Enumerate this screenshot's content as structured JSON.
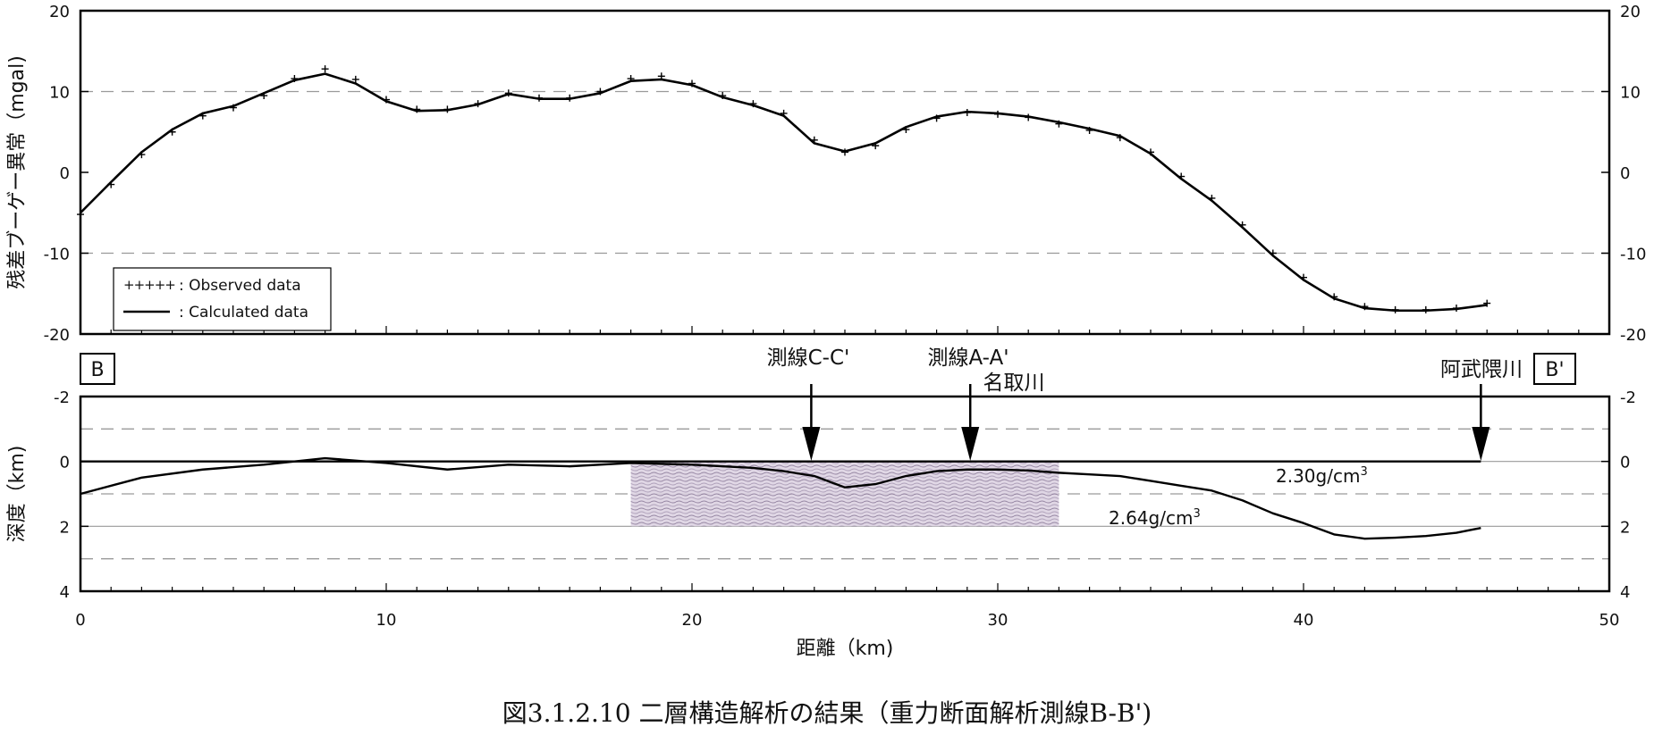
{
  "caption": "図3.1.2.10  二層構造解析の結果（重力断面解析測線B-B')",
  "labels": {
    "section_start": "B",
    "section_end": "B'",
    "arrows": [
      "測線C-C'",
      "測線A-A'",
      "名取川",
      "阿武隈川"
    ]
  },
  "colors": {
    "line": "#000000",
    "grid": "#9a9a9a",
    "seismic": "#b8a6c4"
  },
  "chart_data": [
    {
      "type": "line",
      "ylabel": "残差ブーゲー異常（mgal)",
      "xlim": [
        0,
        50
      ],
      "ylim": [
        -20,
        20
      ],
      "yticks": [
        20,
        10,
        0,
        -10,
        -20
      ],
      "grid": "dashed horizontal at ±10",
      "legend_position": "bottom-left",
      "series": [
        {
          "name": ": Observed data",
          "marker": "+",
          "x": [
            0,
            1,
            2,
            3,
            4,
            5,
            6,
            7,
            8,
            9,
            10,
            11,
            12,
            13,
            14,
            15,
            16,
            17,
            18,
            19,
            20,
            21,
            22,
            23,
            24,
            25,
            26,
            27,
            28,
            29,
            30,
            31,
            32,
            33,
            34,
            35,
            36,
            37,
            38,
            39,
            40,
            41,
            42,
            43,
            44,
            45,
            46
          ],
          "values": [
            -5.2,
            -1.5,
            2.2,
            5,
            7,
            8,
            9.5,
            11.6,
            12.8,
            11.5,
            9,
            7.8,
            7.8,
            8.5,
            9.8,
            9.2,
            9.2,
            10,
            11.6,
            11.9,
            11,
            9.5,
            8.5,
            7.3,
            4,
            2.5,
            3.3,
            5.3,
            6.7,
            7.4,
            7.2,
            6.8,
            6,
            5.2,
            4.3,
            2.5,
            -0.5,
            -3.2,
            -6.5,
            -10,
            -13,
            -15.4,
            -16.6,
            -17,
            -17,
            -16.8,
            -16.2
          ]
        },
        {
          "name": ": Calculated data",
          "x": [
            0,
            1,
            2,
            3,
            4,
            5,
            6,
            7,
            8,
            9,
            10,
            11,
            12,
            13,
            14,
            15,
            16,
            17,
            18,
            19,
            20,
            21,
            22,
            23,
            24,
            25,
            26,
            27,
            28,
            29,
            30,
            31,
            32,
            33,
            34,
            35,
            36,
            37,
            38,
            39,
            40,
            41,
            42,
            43,
            44,
            45,
            46
          ],
          "values": [
            -5,
            -1.2,
            2.5,
            5.3,
            7.3,
            8.2,
            9.8,
            11.4,
            12.2,
            11,
            8.8,
            7.6,
            7.7,
            8.4,
            9.7,
            9.1,
            9.1,
            9.8,
            11.3,
            11.5,
            10.8,
            9.3,
            8.3,
            7,
            3.6,
            2.6,
            3.6,
            5.6,
            6.9,
            7.5,
            7.3,
            6.9,
            6.2,
            5.4,
            4.5,
            2.3,
            -0.8,
            -3.5,
            -6.8,
            -10.3,
            -13.3,
            -15.6,
            -16.8,
            -17.1,
            -17.1,
            -16.9,
            -16.4
          ]
        }
      ]
    },
    {
      "type": "line",
      "xlabel": "距離（km)",
      "ylabel": "深度（km)",
      "xlim": [
        0,
        50
      ],
      "ylim": [
        -2,
        4
      ],
      "xticks": [
        0,
        10,
        20,
        30,
        40,
        50
      ],
      "yticks": [
        -2,
        0,
        2,
        4
      ],
      "grid": "dashed at -1, 1, 3; solid at 0, 2",
      "series": [
        {
          "name": "2.30g/cm3",
          "x": [
            0,
            2,
            4,
            6,
            8,
            10,
            12,
            14,
            16,
            18,
            20,
            22,
            23,
            24,
            25,
            26,
            27,
            28,
            29,
            30,
            31,
            32,
            33,
            34,
            35,
            36,
            37,
            38,
            39,
            40,
            41,
            42,
            43,
            44,
            45,
            45.8
          ],
          "values": [
            1,
            0.5,
            0.25,
            0.1,
            -0.1,
            0.05,
            0.25,
            0.1,
            0.15,
            0.05,
            0.1,
            0.2,
            0.3,
            0.45,
            0.8,
            0.7,
            0.45,
            0.3,
            0.25,
            0.25,
            0.28,
            0.35,
            0.4,
            0.45,
            0.6,
            0.75,
            0.9,
            1.2,
            1.6,
            1.9,
            2.25,
            2.38,
            2.35,
            2.3,
            2.2,
            2.05
          ]
        },
        {
          "name": "2.64g/cm3",
          "x": [
            0,
            5,
            10,
            15,
            20,
            25,
            30,
            35,
            40,
            45.8
          ],
          "values": [
            0,
            0,
            0,
            0,
            0,
            0,
            0,
            0,
            0,
            0
          ]
        }
      ],
      "annotations": [
        {
          "text": "2.30g/cm",
          "sup": "3",
          "x": 39.5,
          "y": 0.4
        },
        {
          "text": "2.64g/cm",
          "sup": "3",
          "x": 35,
          "y": 1.7
        }
      ],
      "arrows_x": [
        23.9,
        29.1,
        45.8
      ],
      "seismic_section": {
        "x_range": [
          18,
          32
        ],
        "y_range": [
          0,
          2
        ]
      }
    }
  ]
}
